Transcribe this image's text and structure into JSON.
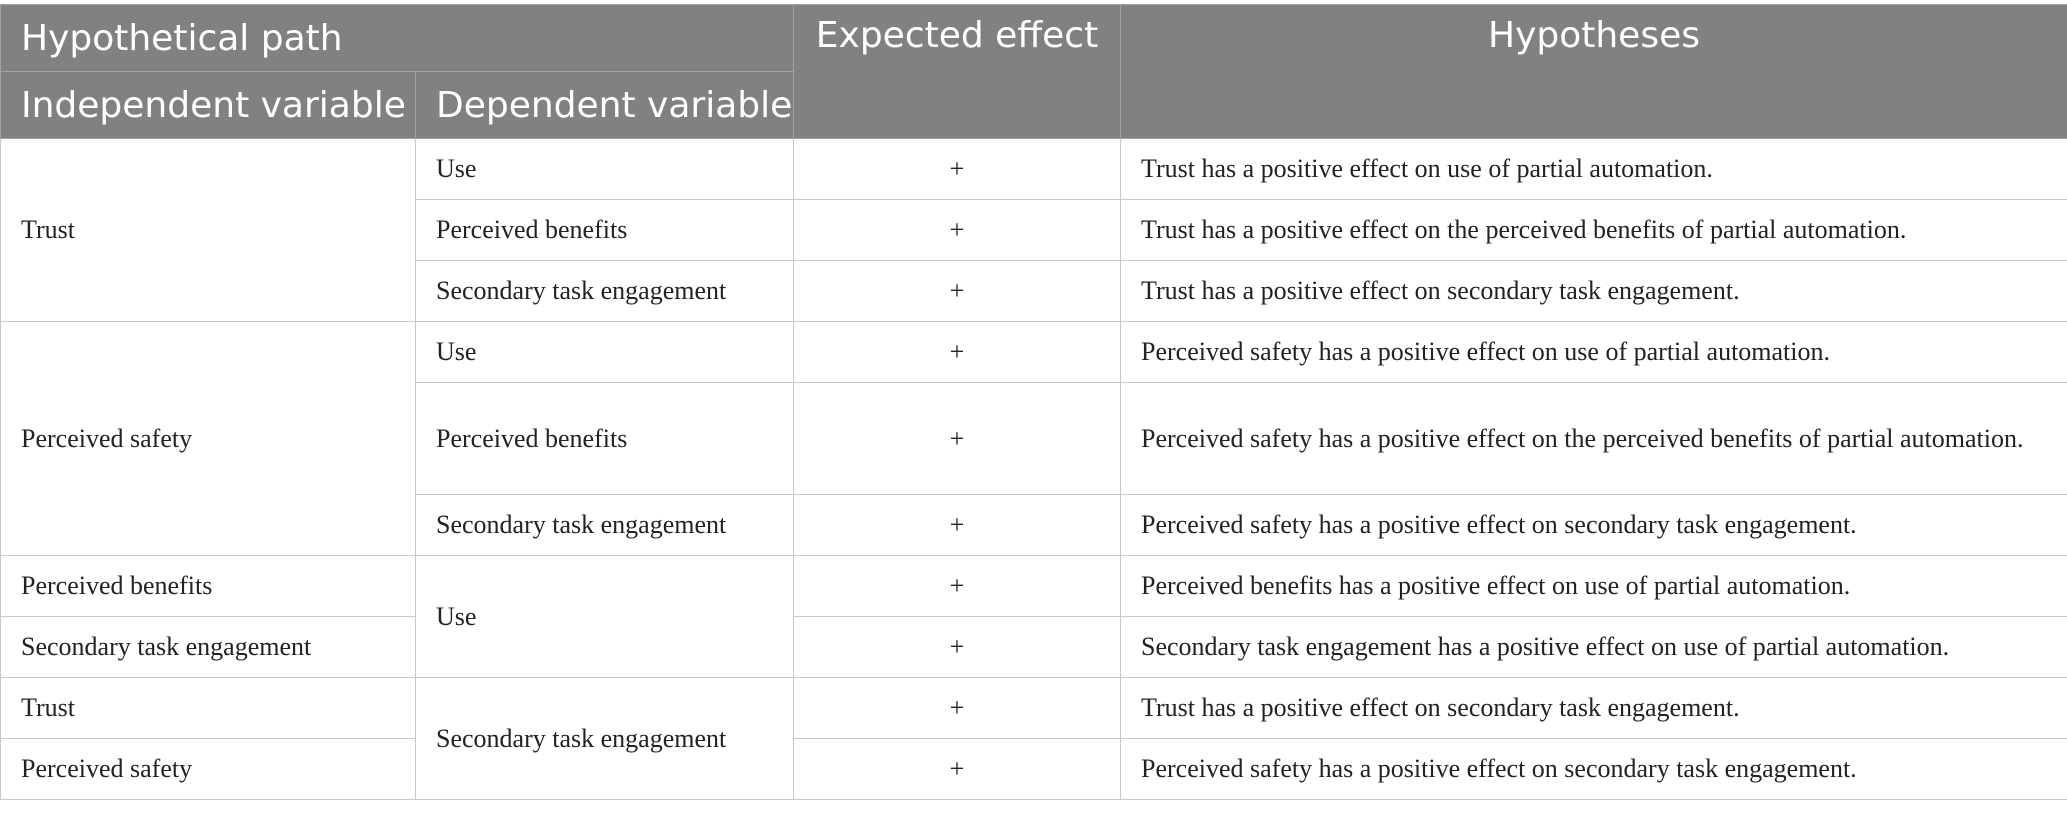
{
  "header": {
    "hypothetical_path": "Hypothetical path",
    "independent_variable": "Independent variable",
    "dependent_variable": "Dependent variable",
    "expected_effect": "Expected effect",
    "hypotheses": "Hypotheses"
  },
  "groups": [
    {
      "independent": "Trust"
    },
    {
      "independent": "Perceived safety"
    },
    {
      "dependent": "Use"
    },
    {
      "dependent": "Secondary task engagement"
    }
  ],
  "rows": [
    {
      "dependent": "Use",
      "effect": "+",
      "hypothesis": "Trust has a positive effect on use of partial automation."
    },
    {
      "dependent": "Perceived benefits",
      "effect": "+",
      "hypothesis": "Trust has a positive effect on the perceived benefits of partial automation."
    },
    {
      "dependent": "Secondary task engagement",
      "effect": "+",
      "hypothesis": "Trust has a positive effect on secondary task engagement."
    },
    {
      "dependent": "Use",
      "effect": "+",
      "hypothesis": "Perceived safety has a positive effect on use of partial automation."
    },
    {
      "dependent": "Perceived benefits",
      "effect": "+",
      "hypothesis": "Perceived safety has a positive effect on the perceived benefits of partial automation."
    },
    {
      "dependent": "Secondary task engagement",
      "effect": "+",
      "hypothesis": "Perceived safety has a positive effect on secondary task engagement."
    },
    {
      "independent": "Perceived benefits",
      "effect": "+",
      "hypothesis": "Perceived benefits has a positive effect on use of partial automation."
    },
    {
      "independent": "Secondary task engagement",
      "effect": "+",
      "hypothesis": "Secondary task engagement has a positive effect on use of partial automation."
    },
    {
      "independent": "Trust",
      "effect": "+",
      "hypothesis": "Trust has a positive effect on secondary task engagement."
    },
    {
      "independent": "Perceived safety",
      "effect": "+",
      "hypothesis": "Perceived safety has a positive effect on secondary task engagement."
    }
  ]
}
